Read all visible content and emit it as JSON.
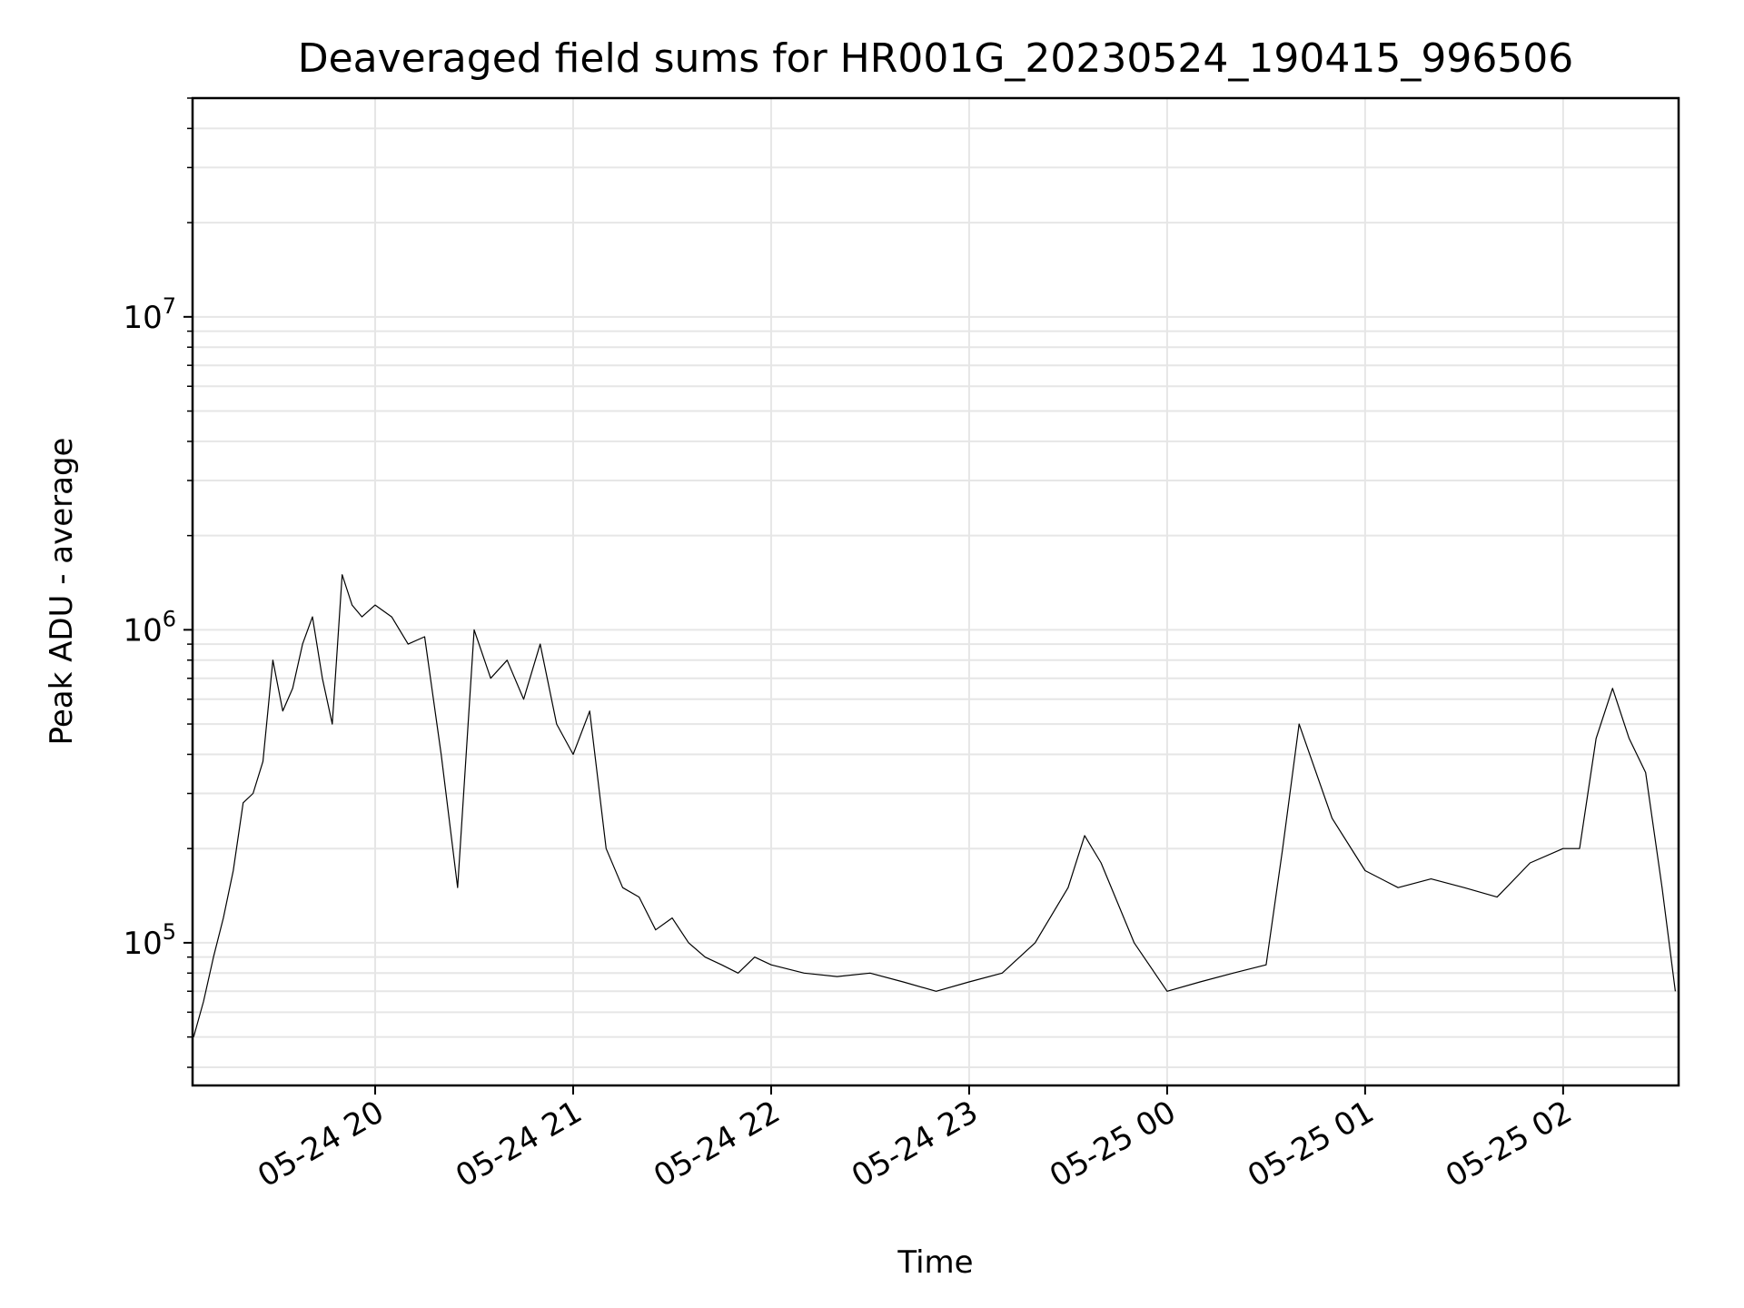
{
  "chart_data": {
    "type": "line",
    "title": "Deaveraged field sums for HR001G_20230524_190415_996506",
    "xlabel": "Time",
    "ylabel": "Peak ADU - average",
    "y_scale": "log",
    "ylim": [
      35000,
      50000000
    ],
    "xlim": [
      "2023-05-24 19:04:40",
      "2023-05-25 02:35:00"
    ],
    "grid": true,
    "line_color": "#000000",
    "grid_color": "#e6e6e6",
    "x_ticks": [
      {
        "time": "2023-05-24 20:00",
        "label": "05-24 20"
      },
      {
        "time": "2023-05-24 21:00",
        "label": "05-24 21"
      },
      {
        "time": "2023-05-24 22:00",
        "label": "05-24 22"
      },
      {
        "time": "2023-05-24 23:00",
        "label": "05-24 23"
      },
      {
        "time": "2023-05-25 00:00",
        "label": "05-25 00"
      },
      {
        "time": "2023-05-25 01:00",
        "label": "05-25 01"
      },
      {
        "time": "2023-05-25 02:00",
        "label": "05-25 02"
      }
    ],
    "y_ticks": [
      {
        "value": 100000,
        "base": "10",
        "exp": "5"
      },
      {
        "value": 1000000,
        "base": "10",
        "exp": "6"
      },
      {
        "value": 10000000,
        "base": "10",
        "exp": "7"
      }
    ],
    "series": [
      {
        "x": [
          "2023-05-24 19:05",
          "2023-05-24 19:08",
          "2023-05-24 19:11",
          "2023-05-24 19:14",
          "2023-05-24 19:17",
          "2023-05-24 19:20",
          "2023-05-24 19:23",
          "2023-05-24 19:26",
          "2023-05-24 19:29",
          "2023-05-24 19:32",
          "2023-05-24 19:35",
          "2023-05-24 19:38",
          "2023-05-24 19:41",
          "2023-05-24 19:44",
          "2023-05-24 19:47",
          "2023-05-24 19:50",
          "2023-05-24 19:53",
          "2023-05-24 19:56",
          "2023-05-24 20:00",
          "2023-05-24 20:05",
          "2023-05-24 20:10",
          "2023-05-24 20:15",
          "2023-05-24 20:20",
          "2023-05-24 20:25",
          "2023-05-24 20:30",
          "2023-05-24 20:35",
          "2023-05-24 20:40",
          "2023-05-24 20:45",
          "2023-05-24 20:50",
          "2023-05-24 20:55",
          "2023-05-24 21:00",
          "2023-05-24 21:05",
          "2023-05-24 21:10",
          "2023-05-24 21:15",
          "2023-05-24 21:20",
          "2023-05-24 21:25",
          "2023-05-24 21:30",
          "2023-05-24 21:35",
          "2023-05-24 21:40",
          "2023-05-24 21:45",
          "2023-05-24 21:50",
          "2023-05-24 21:55",
          "2023-05-24 22:00",
          "2023-05-24 22:10",
          "2023-05-24 22:20",
          "2023-05-24 22:30",
          "2023-05-24 22:40",
          "2023-05-24 22:50",
          "2023-05-24 23:00",
          "2023-05-24 23:10",
          "2023-05-24 23:20",
          "2023-05-24 23:30",
          "2023-05-24 23:35",
          "2023-05-24 23:40",
          "2023-05-24 23:50",
          "2023-05-25 00:00",
          "2023-05-25 00:10",
          "2023-05-25 00:20",
          "2023-05-25 00:30",
          "2023-05-25 00:35",
          "2023-05-25 00:40",
          "2023-05-25 00:50",
          "2023-05-25 01:00",
          "2023-05-25 01:10",
          "2023-05-25 01:20",
          "2023-05-25 01:30",
          "2023-05-25 01:40",
          "2023-05-25 01:50",
          "2023-05-25 02:00",
          "2023-05-25 02:05",
          "2023-05-25 02:10",
          "2023-05-25 02:15",
          "2023-05-25 02:20",
          "2023-05-25 02:25",
          "2023-05-25 02:30",
          "2023-05-25 02:34"
        ],
        "y": [
          50000,
          65000,
          90000,
          120000,
          170000,
          280000,
          300000,
          380000,
          800000,
          550000,
          650000,
          900000,
          1100000,
          700000,
          500000,
          1500000,
          1200000,
          1100000,
          1200000,
          1100000,
          900000,
          950000,
          400000,
          150000,
          1000000,
          700000,
          800000,
          600000,
          900000,
          500000,
          400000,
          550000,
          200000,
          150000,
          140000,
          110000,
          120000,
          100000,
          90000,
          85000,
          80000,
          90000,
          85000,
          80000,
          78000,
          80000,
          75000,
          70000,
          75000,
          80000,
          100000,
          150000,
          220000,
          180000,
          100000,
          70000,
          75000,
          80000,
          85000,
          200000,
          500000,
          250000,
          170000,
          150000,
          160000,
          150000,
          140000,
          180000,
          200000,
          200000,
          450000,
          650000,
          450000,
          350000,
          150000,
          70000
        ]
      }
    ]
  }
}
